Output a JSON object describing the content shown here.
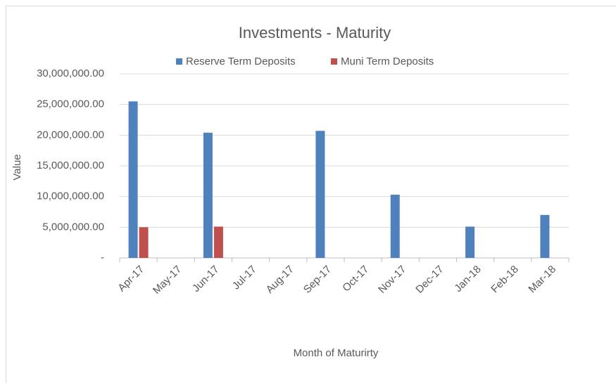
{
  "chart_data": {
    "type": "bar",
    "title": "Investments - Maturity",
    "x_label": "Month of Maturirty",
    "y_label": "Value",
    "categories": [
      "Apr-17",
      "May-17",
      "Jun-17",
      "Jul-17",
      "Aug-17",
      "Sep-17",
      "Oct-17",
      "Nov-17",
      "Dec-17",
      "Jan-18",
      "Feb-18",
      "Mar-18"
    ],
    "series": [
      {
        "name": "Reserve Term Deposits",
        "color": "#4f81bd",
        "values": [
          25500000,
          null,
          20400000,
          null,
          null,
          20700000,
          null,
          10300000,
          null,
          5100000,
          null,
          7000000
        ]
      },
      {
        "name": "Muni Term Deposits",
        "color": "#c0504d",
        "values": [
          5000000,
          null,
          5100000,
          null,
          null,
          null,
          null,
          null,
          null,
          null,
          null,
          null
        ]
      }
    ],
    "ylim": [
      0,
      30000000
    ],
    "yticks": [
      {
        "value": 0,
        "label": "-"
      },
      {
        "value": 5000000,
        "label": "5,000,000.00"
      },
      {
        "value": 10000000,
        "label": "10,000,000.00"
      },
      {
        "value": 15000000,
        "label": "15,000,000.00"
      },
      {
        "value": 20000000,
        "label": "20,000,000.00"
      },
      {
        "value": 25000000,
        "label": "25,000,000.00"
      },
      {
        "value": 30000000,
        "label": "30,000,000.00"
      }
    ],
    "grid": true,
    "legend": "top"
  }
}
